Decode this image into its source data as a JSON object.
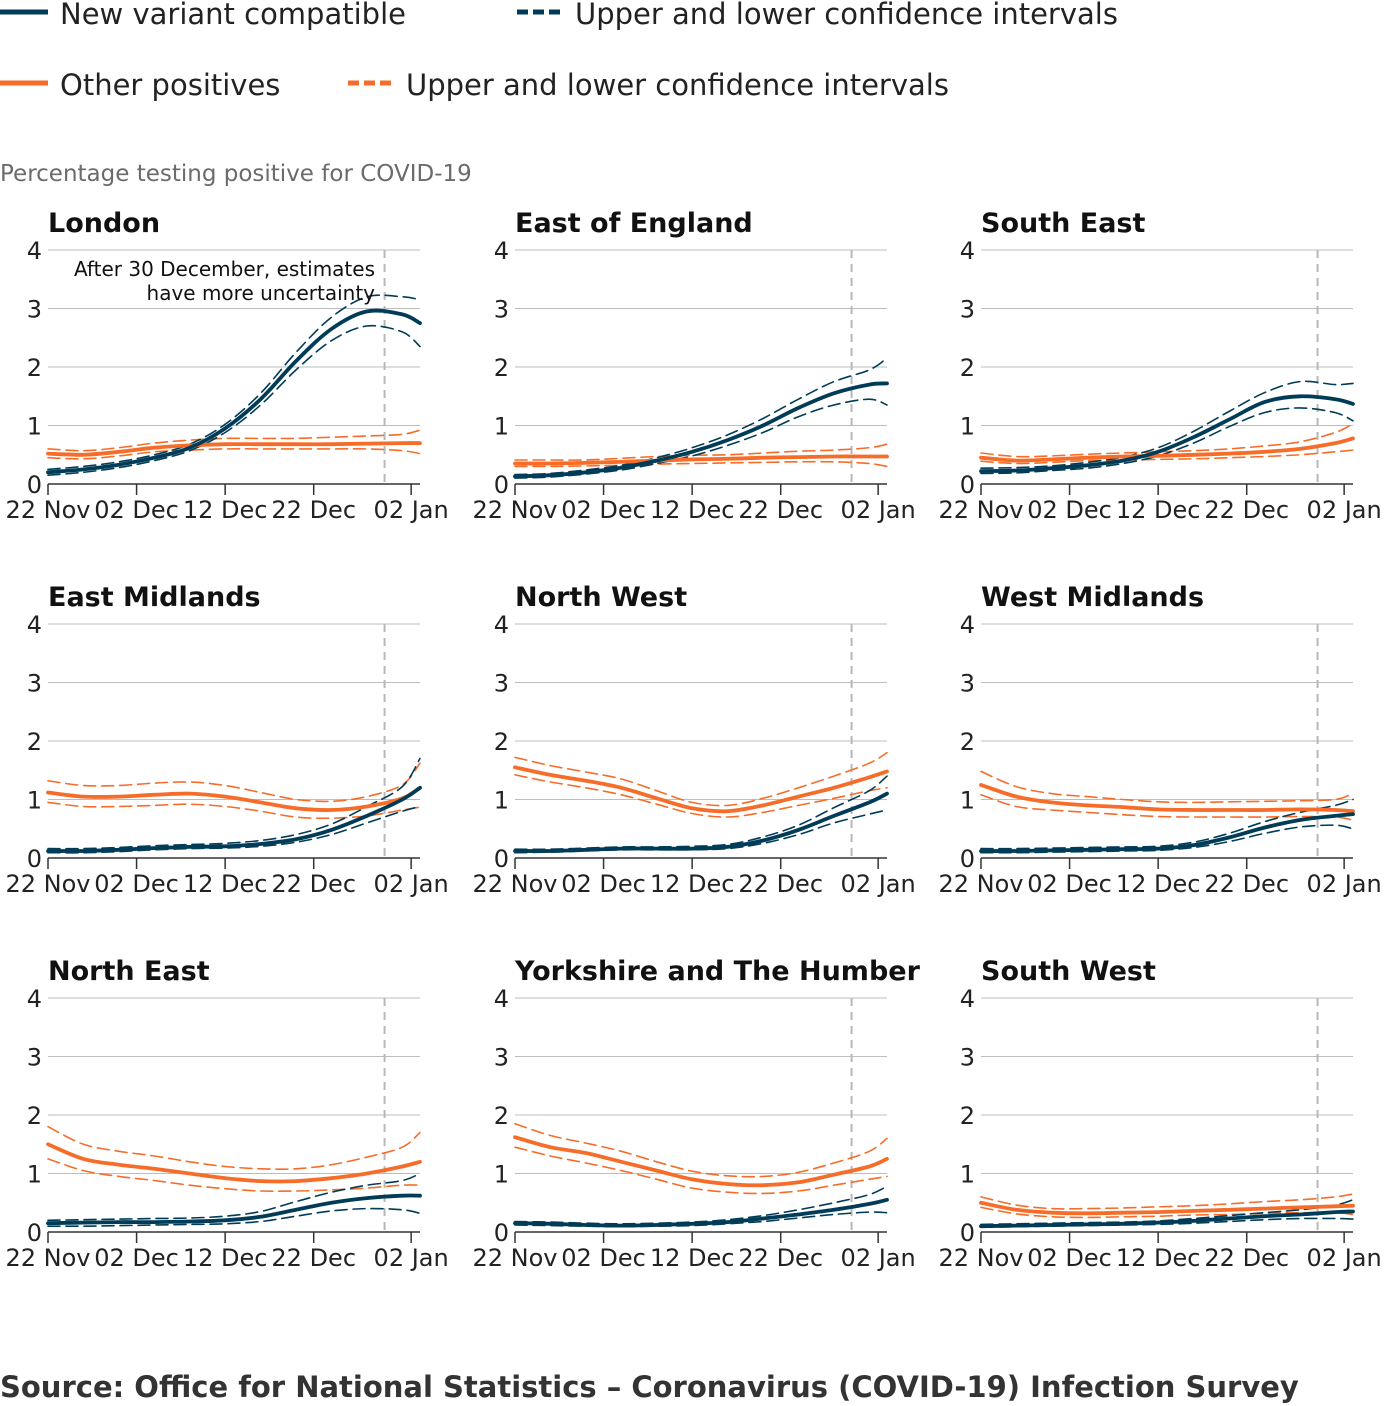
{
  "legend": {
    "new_variant": "New variant compatible",
    "new_variant_ci": "Upper and lower confidence intervals",
    "other": "Other positives",
    "other_ci": "Upper and lower confidence intervals"
  },
  "colors": {
    "new_variant": "#003c57",
    "other": "#f66d2a",
    "grid": "#bdbdbd",
    "marker": "#b8b8b8"
  },
  "ylabel": "Percentage testing positive for COVID-19",
  "annotation": [
    "After 30 December, estimates",
    "have more uncertainty"
  ],
  "source": "Source: Office for National Statistics – Coronavirus (COVID-19) Infection Survey",
  "chart_data": {
    "type": "line",
    "x_dates": [
      "2020-11-22",
      "2020-11-26",
      "2020-11-30",
      "2020-12-04",
      "2020-12-08",
      "2020-12-12",
      "2020-12-16",
      "2020-12-20",
      "2020-12-24",
      "2020-12-28",
      "2021-01-01",
      "2021-01-03"
    ],
    "x_ticks": [
      "22 Nov",
      "02 Dec",
      "12 Dec",
      "22 Dec",
      "02 Jan"
    ],
    "y_ticks": [
      "0",
      "1",
      "2",
      "3",
      "4"
    ],
    "ylim": [
      0,
      4
    ],
    "marker_date": "2020-12-30",
    "panels": [
      {
        "title": "London",
        "nv": [
          0.2,
          0.25,
          0.33,
          0.45,
          0.62,
          0.95,
          1.45,
          2.1,
          2.65,
          2.95,
          2.9,
          2.75
        ],
        "nv_ci": [
          [
            0.15,
            0.2,
            0.28,
            0.4,
            0.57,
            0.88,
            1.35,
            1.95,
            2.45,
            2.7,
            2.6,
            2.35
          ],
          [
            0.25,
            0.3,
            0.38,
            0.5,
            0.68,
            1.02,
            1.55,
            2.25,
            2.85,
            3.2,
            3.2,
            3.15
          ]
        ],
        "ot": [
          0.52,
          0.5,
          0.55,
          0.62,
          0.66,
          0.68,
          0.68,
          0.68,
          0.68,
          0.69,
          0.7,
          0.7
        ],
        "ot_ci": [
          [
            0.45,
            0.43,
            0.48,
            0.55,
            0.58,
            0.6,
            0.6,
            0.6,
            0.6,
            0.6,
            0.57,
            0.52
          ],
          [
            0.6,
            0.57,
            0.62,
            0.7,
            0.75,
            0.78,
            0.78,
            0.78,
            0.8,
            0.82,
            0.85,
            0.92
          ]
        ]
      },
      {
        "title": "East of England",
        "nv": [
          0.13,
          0.15,
          0.2,
          0.28,
          0.4,
          0.55,
          0.75,
          1.0,
          1.3,
          1.55,
          1.7,
          1.72
        ],
        "nv_ci": [
          [
            0.1,
            0.12,
            0.17,
            0.24,
            0.35,
            0.48,
            0.66,
            0.88,
            1.15,
            1.35,
            1.45,
            1.35
          ],
          [
            0.16,
            0.18,
            0.24,
            0.32,
            0.45,
            0.62,
            0.84,
            1.12,
            1.45,
            1.75,
            1.95,
            2.15
          ]
        ],
        "ot": [
          0.35,
          0.35,
          0.36,
          0.38,
          0.4,
          0.42,
          0.43,
          0.45,
          0.46,
          0.47,
          0.47,
          0.47
        ],
        "ot_ci": [
          [
            0.3,
            0.3,
            0.31,
            0.32,
            0.34,
            0.35,
            0.36,
            0.37,
            0.38,
            0.38,
            0.35,
            0.3
          ],
          [
            0.41,
            0.41,
            0.41,
            0.44,
            0.47,
            0.49,
            0.5,
            0.53,
            0.56,
            0.58,
            0.62,
            0.68
          ]
        ]
      },
      {
        "title": "South East",
        "nv": [
          0.22,
          0.23,
          0.27,
          0.32,
          0.4,
          0.55,
          0.8,
          1.1,
          1.4,
          1.5,
          1.45,
          1.37
        ],
        "nv_ci": [
          [
            0.18,
            0.19,
            0.23,
            0.27,
            0.35,
            0.48,
            0.7,
            0.98,
            1.22,
            1.3,
            1.22,
            1.08
          ],
          [
            0.27,
            0.28,
            0.31,
            0.37,
            0.46,
            0.62,
            0.9,
            1.24,
            1.56,
            1.75,
            1.7,
            1.72
          ]
        ],
        "ot": [
          0.45,
          0.4,
          0.42,
          0.45,
          0.47,
          0.48,
          0.5,
          0.52,
          0.55,
          0.6,
          0.7,
          0.78
        ],
        "ot_ci": [
          [
            0.39,
            0.35,
            0.37,
            0.4,
            0.41,
            0.42,
            0.43,
            0.45,
            0.47,
            0.5,
            0.55,
            0.58
          ],
          [
            0.53,
            0.47,
            0.48,
            0.51,
            0.53,
            0.55,
            0.57,
            0.6,
            0.65,
            0.72,
            0.88,
            1.03
          ]
        ]
      },
      {
        "title": "East Midlands",
        "nv": [
          0.12,
          0.12,
          0.14,
          0.17,
          0.19,
          0.2,
          0.24,
          0.32,
          0.48,
          0.72,
          1.0,
          1.2
        ],
        "nv_ci": [
          [
            0.09,
            0.09,
            0.11,
            0.14,
            0.16,
            0.17,
            0.2,
            0.27,
            0.4,
            0.6,
            0.8,
            0.88
          ],
          [
            0.16,
            0.16,
            0.18,
            0.21,
            0.23,
            0.25,
            0.3,
            0.4,
            0.58,
            0.88,
            1.22,
            1.7
          ]
        ],
        "ot": [
          1.12,
          1.05,
          1.05,
          1.08,
          1.1,
          1.05,
          0.95,
          0.85,
          0.82,
          0.88,
          1.02,
          1.2
        ],
        "ot_ci": [
          [
            0.95,
            0.88,
            0.88,
            0.9,
            0.92,
            0.88,
            0.8,
            0.7,
            0.68,
            0.72,
            0.82,
            0.87
          ],
          [
            1.32,
            1.24,
            1.24,
            1.28,
            1.3,
            1.24,
            1.12,
            1.0,
            0.97,
            1.05,
            1.25,
            1.62
          ]
        ]
      },
      {
        "title": "North West",
        "nv": [
          0.12,
          0.12,
          0.14,
          0.16,
          0.16,
          0.16,
          0.19,
          0.3,
          0.48,
          0.72,
          0.95,
          1.1
        ],
        "nv_ci": [
          [
            0.09,
            0.1,
            0.12,
            0.14,
            0.14,
            0.14,
            0.16,
            0.25,
            0.4,
            0.6,
            0.75,
            0.82
          ],
          [
            0.15,
            0.15,
            0.17,
            0.19,
            0.19,
            0.2,
            0.23,
            0.36,
            0.56,
            0.86,
            1.15,
            1.4
          ]
        ],
        "ot": [
          1.55,
          1.42,
          1.32,
          1.2,
          1.02,
          0.85,
          0.8,
          0.9,
          1.05,
          1.2,
          1.38,
          1.48
        ],
        "ot_ci": [
          [
            1.42,
            1.3,
            1.2,
            1.08,
            0.92,
            0.76,
            0.7,
            0.78,
            0.9,
            1.02,
            1.15,
            1.2
          ],
          [
            1.72,
            1.58,
            1.47,
            1.35,
            1.15,
            0.95,
            0.9,
            1.02,
            1.2,
            1.4,
            1.62,
            1.8
          ]
        ]
      },
      {
        "title": "West Midlands",
        "nv": [
          0.12,
          0.12,
          0.13,
          0.14,
          0.15,
          0.16,
          0.22,
          0.35,
          0.52,
          0.65,
          0.72,
          0.75
        ],
        "nv_ci": [
          [
            0.09,
            0.09,
            0.1,
            0.11,
            0.12,
            0.13,
            0.18,
            0.28,
            0.42,
            0.53,
            0.56,
            0.5
          ],
          [
            0.16,
            0.16,
            0.17,
            0.18,
            0.19,
            0.2,
            0.27,
            0.42,
            0.62,
            0.78,
            0.9,
            1.0
          ]
        ],
        "ot": [
          1.25,
          1.05,
          0.95,
          0.9,
          0.87,
          0.83,
          0.82,
          0.82,
          0.82,
          0.83,
          0.82,
          0.8
        ],
        "ot_ci": [
          [
            1.08,
            0.88,
            0.82,
            0.78,
            0.74,
            0.71,
            0.7,
            0.7,
            0.7,
            0.71,
            0.7,
            0.65
          ],
          [
            1.48,
            1.22,
            1.1,
            1.05,
            1.0,
            0.96,
            0.95,
            0.96,
            0.97,
            0.98,
            1.0,
            1.1
          ]
        ]
      },
      {
        "title": "North East",
        "nv": [
          0.15,
          0.16,
          0.17,
          0.17,
          0.18,
          0.2,
          0.26,
          0.38,
          0.5,
          0.58,
          0.62,
          0.62
        ],
        "nv_ci": [
          [
            0.1,
            0.1,
            0.11,
            0.12,
            0.13,
            0.14,
            0.18,
            0.27,
            0.36,
            0.4,
            0.38,
            0.32
          ],
          [
            0.2,
            0.21,
            0.22,
            0.23,
            0.24,
            0.27,
            0.35,
            0.52,
            0.68,
            0.8,
            0.88,
            1.0
          ]
        ],
        "ot": [
          1.5,
          1.25,
          1.15,
          1.08,
          1.0,
          0.92,
          0.87,
          0.87,
          0.92,
          1.0,
          1.12,
          1.2
        ],
        "ot_ci": [
          [
            1.25,
            1.05,
            0.95,
            0.88,
            0.8,
            0.74,
            0.7,
            0.7,
            0.72,
            0.75,
            0.8,
            0.8
          ],
          [
            1.8,
            1.5,
            1.38,
            1.3,
            1.2,
            1.12,
            1.08,
            1.08,
            1.15,
            1.28,
            1.45,
            1.7
          ]
        ]
      },
      {
        "title": "Yorkshire and The Humber",
        "nv": [
          0.15,
          0.14,
          0.12,
          0.11,
          0.12,
          0.14,
          0.17,
          0.23,
          0.3,
          0.38,
          0.48,
          0.55
        ],
        "nv_ci": [
          [
            0.12,
            0.11,
            0.1,
            0.09,
            0.1,
            0.11,
            0.14,
            0.18,
            0.24,
            0.3,
            0.34,
            0.33
          ],
          [
            0.18,
            0.17,
            0.15,
            0.14,
            0.15,
            0.17,
            0.21,
            0.28,
            0.38,
            0.5,
            0.64,
            0.78
          ]
        ],
        "ot": [
          1.62,
          1.45,
          1.35,
          1.2,
          1.05,
          0.9,
          0.82,
          0.8,
          0.85,
          0.98,
          1.12,
          1.25
        ],
        "ot_ci": [
          [
            1.45,
            1.3,
            1.18,
            1.05,
            0.9,
            0.75,
            0.68,
            0.66,
            0.7,
            0.8,
            0.9,
            0.95
          ],
          [
            1.85,
            1.65,
            1.52,
            1.38,
            1.2,
            1.04,
            0.96,
            0.95,
            1.02,
            1.18,
            1.38,
            1.6
          ]
        ]
      },
      {
        "title": "South West",
        "nv": [
          0.1,
          0.11,
          0.12,
          0.13,
          0.14,
          0.16,
          0.19,
          0.23,
          0.27,
          0.3,
          0.34,
          0.35
        ],
        "nv_ci": [
          [
            0.08,
            0.09,
            0.1,
            0.11,
            0.12,
            0.13,
            0.15,
            0.18,
            0.21,
            0.23,
            0.23,
            0.22
          ],
          [
            0.13,
            0.14,
            0.15,
            0.16,
            0.17,
            0.19,
            0.23,
            0.28,
            0.33,
            0.38,
            0.46,
            0.55
          ]
        ],
        "ot": [
          0.5,
          0.38,
          0.33,
          0.32,
          0.33,
          0.34,
          0.36,
          0.38,
          0.4,
          0.42,
          0.44,
          0.45
        ],
        "ot_ci": [
          [
            0.42,
            0.31,
            0.26,
            0.25,
            0.26,
            0.27,
            0.29,
            0.3,
            0.32,
            0.33,
            0.33,
            0.3
          ],
          [
            0.6,
            0.46,
            0.4,
            0.4,
            0.41,
            0.43,
            0.45,
            0.48,
            0.52,
            0.55,
            0.6,
            0.65
          ]
        ]
      }
    ]
  }
}
